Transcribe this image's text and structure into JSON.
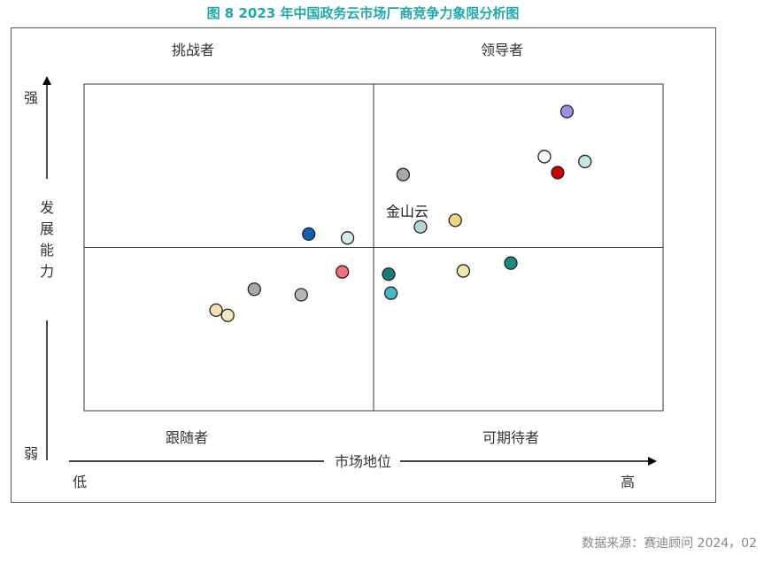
{
  "title": "图 8  2023 年中国政务云市场厂商竞争力象限分析图",
  "source": "数据来源：赛迪顾问  2024，02",
  "chart_data": {
    "type": "scatter",
    "quadrants": {
      "top_left": "挑战者",
      "top_right": "领导者",
      "bottom_left": "跟随者",
      "bottom_right": "可期待者"
    },
    "x_axis": {
      "label": "市场地位",
      "low": "低",
      "high": "高"
    },
    "y_axis": {
      "label_chars": [
        "发",
        "展",
        "能",
        "力"
      ],
      "high": "强",
      "low": "弱"
    },
    "xlim": [
      0,
      100
    ],
    "ylim": [
      0,
      100
    ],
    "divider": {
      "x": 50,
      "y": 50
    },
    "grid": false,
    "points": [
      {
        "x": 83.4,
        "y": 91.6,
        "color": "#9b8fe8"
      },
      {
        "x": 79.5,
        "y": 77.8,
        "color": "#ffffff"
      },
      {
        "x": 86.5,
        "y": 76.3,
        "color": "#c5e8e6"
      },
      {
        "x": 81.8,
        "y": 72.9,
        "color": "#cc0000"
      },
      {
        "x": 55.1,
        "y": 72.3,
        "color": "#a8a8a8"
      },
      {
        "x": 64.1,
        "y": 58.3,
        "color": "#f2d38a"
      },
      {
        "x": 58.1,
        "y": 56.3,
        "color": "#b5d3cf",
        "label": "金山云"
      },
      {
        "x": 45.5,
        "y": 52.9,
        "color": "#d3eceb"
      },
      {
        "x": 38.8,
        "y": 54.1,
        "color": "#1060b0"
      },
      {
        "x": 73.7,
        "y": 45.2,
        "color": "#1a8a80"
      },
      {
        "x": 65.5,
        "y": 42.8,
        "color": "#f0e7a8"
      },
      {
        "x": 52.6,
        "y": 41.8,
        "color": "#1a7a78"
      },
      {
        "x": 29.4,
        "y": 37.2,
        "color": "#a8a8a8"
      },
      {
        "x": 53.0,
        "y": 36.0,
        "color": "#48b8c8"
      },
      {
        "x": 37.5,
        "y": 35.5,
        "color": "#b8b8b8"
      },
      {
        "x": 22.8,
        "y": 30.8,
        "color": "#f2e0b0"
      },
      {
        "x": 24.8,
        "y": 29.2,
        "color": "#eee8c0"
      },
      {
        "x": 44.6,
        "y": 42.5,
        "color": "#ef7080"
      }
    ]
  }
}
